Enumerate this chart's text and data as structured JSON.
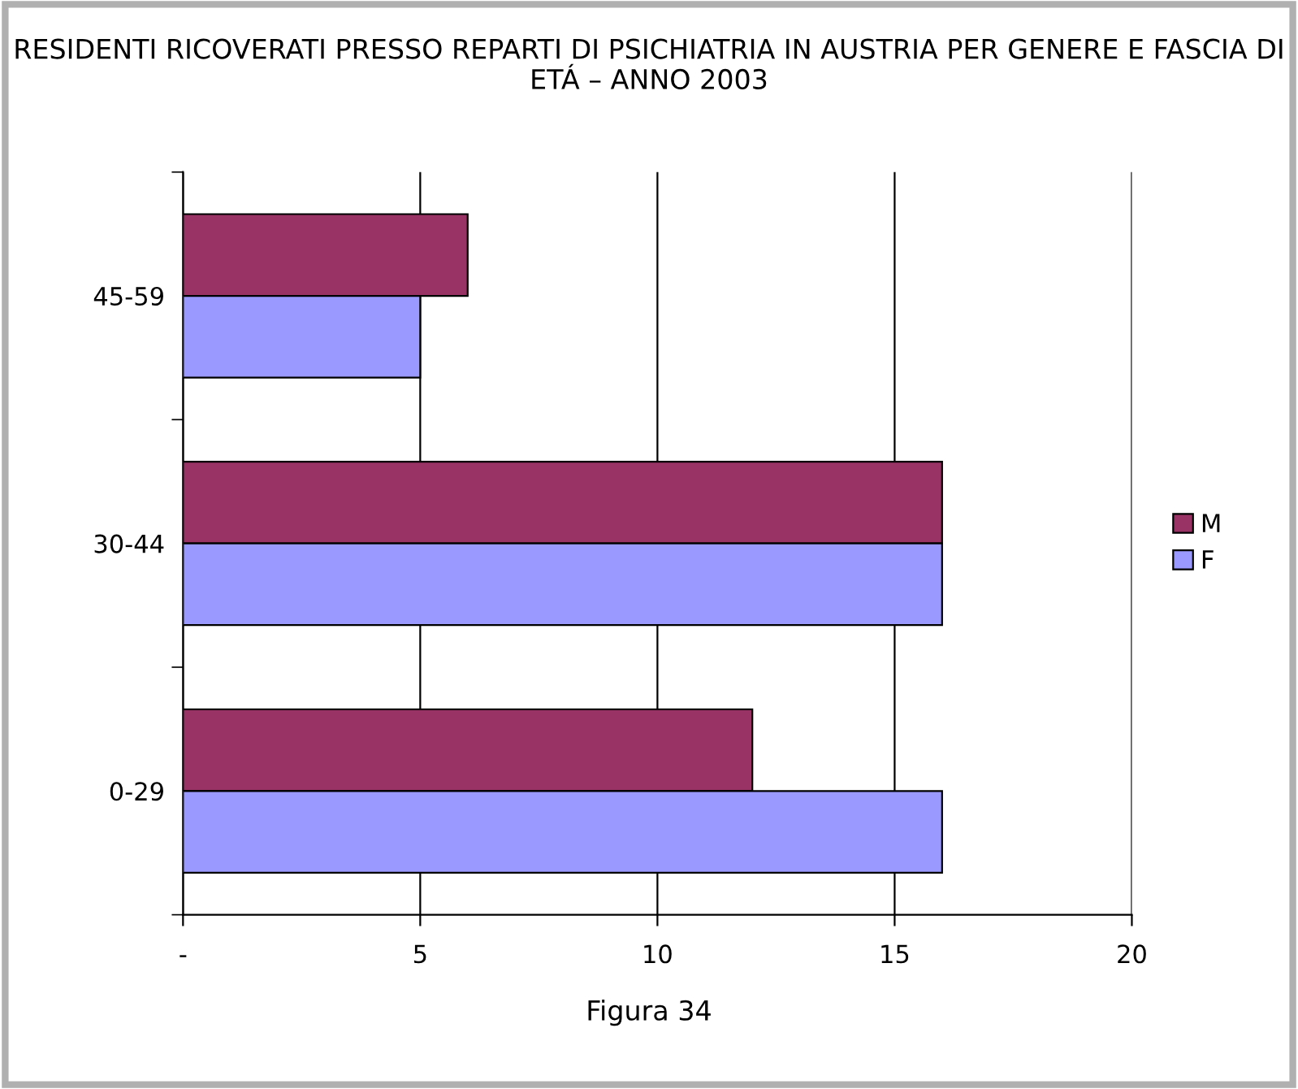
{
  "chart_data": {
    "type": "bar",
    "orientation": "horizontal",
    "title": "RESIDENTI RICOVERATI PRESSO REPARTI DI PSICHIATRIA IN AUSTRIA PER GENERE E FASCIA DI ETÁ – ANNO 2003",
    "categories": [
      "45-59",
      "30-44",
      "0-29"
    ],
    "series": [
      {
        "name": "M",
        "color": "#993366",
        "values": [
          6,
          16,
          12
        ]
      },
      {
        "name": "F",
        "color": "#9999ff",
        "values": [
          5,
          16,
          16
        ]
      }
    ],
    "xlim": [
      0,
      20
    ],
    "xticks": [
      {
        "value": 0,
        "label": "-"
      },
      5,
      10,
      15,
      20
    ],
    "grid": "x",
    "legend": "right",
    "annotations": [
      "Figura 34"
    ]
  }
}
